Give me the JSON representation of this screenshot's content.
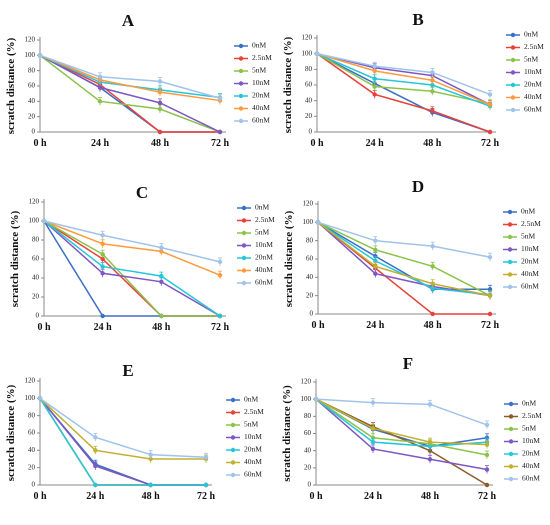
{
  "figure": {
    "title": "",
    "series_colors": [
      "#3a6fc4",
      "#e8413a",
      "#8bc34a",
      "#7e57c2",
      "#26c6da",
      "#ff9a3c",
      "#9fc3ea"
    ]
  },
  "chart_data": [
    {
      "panel": "A",
      "type": "line",
      "title": "A",
      "xlabel": "",
      "ylabel": "scratch distance (%)",
      "ylim": [
        0,
        120
      ],
      "yticks": [
        0,
        20,
        40,
        60,
        80,
        100,
        120
      ],
      "x": [
        "0 h",
        "24 h",
        "48 h",
        "72 h"
      ],
      "series": [
        {
          "name": "0nM",
          "color": "#3a6fc4",
          "values": [
            100,
            58,
            0,
            0
          ]
        },
        {
          "name": "2.5nM",
          "color": "#e8413a",
          "values": [
            100,
            62,
            0,
            0
          ]
        },
        {
          "name": "5nM",
          "color": "#8bc34a",
          "values": [
            100,
            40,
            30,
            0
          ]
        },
        {
          "name": "10nM",
          "color": "#7e57c2",
          "values": [
            100,
            58,
            38,
            0
          ]
        },
        {
          "name": "20nM",
          "color": "#26c6da",
          "values": [
            100,
            65,
            55,
            45
          ]
        },
        {
          "name": "40nM",
          "color": "#ff9a3c",
          "values": [
            100,
            68,
            52,
            41
          ]
        },
        {
          "name": "60nM",
          "color": "#9fc3ea",
          "values": [
            100,
            72,
            66,
            44
          ]
        }
      ]
    },
    {
      "panel": "B",
      "type": "line",
      "title": "B",
      "xlabel": "",
      "ylabel": "scratch distance (%)",
      "ylim": [
        0,
        120
      ],
      "yticks": [
        0,
        20,
        40,
        60,
        80,
        100,
        120
      ],
      "x": [
        "0 h",
        "24 h",
        "48 h",
        "72 h"
      ],
      "series": [
        {
          "name": "0nM",
          "color": "#3a6fc4",
          "values": [
            100,
            62,
            25,
            0
          ]
        },
        {
          "name": "2.5nM",
          "color": "#e8413a",
          "values": [
            100,
            48,
            27,
            0
          ]
        },
        {
          "name": "5nM",
          "color": "#8bc34a",
          "values": [
            100,
            58,
            52,
            36
          ]
        },
        {
          "name": "10nM",
          "color": "#7e57c2",
          "values": [
            100,
            82,
            72,
            35
          ]
        },
        {
          "name": "20nM",
          "color": "#26c6da",
          "values": [
            100,
            68,
            60,
            33
          ]
        },
        {
          "name": "40nM",
          "color": "#ff9a3c",
          "values": [
            100,
            78,
            66,
            35
          ]
        },
        {
          "name": "60nM",
          "color": "#9fc3ea",
          "values": [
            100,
            84,
            76,
            48
          ]
        }
      ]
    },
    {
      "panel": "C",
      "type": "line",
      "title": "C",
      "xlabel": "",
      "ylabel": "scratch distance (%)",
      "ylim": [
        0,
        120
      ],
      "yticks": [
        0,
        20,
        40,
        60,
        80,
        100,
        120
      ],
      "x": [
        "0 h",
        "24 h",
        "48 h",
        "72 h"
      ],
      "series": [
        {
          "name": "0nM",
          "color": "#3a6fc4",
          "values": [
            100,
            0,
            0,
            0
          ]
        },
        {
          "name": "2.5nM",
          "color": "#e8413a",
          "values": [
            100,
            60,
            0,
            0
          ]
        },
        {
          "name": "5nM",
          "color": "#8bc34a",
          "values": [
            100,
            65,
            0,
            0
          ]
        },
        {
          "name": "10nM",
          "color": "#7e57c2",
          "values": [
            100,
            45,
            36,
            0
          ]
        },
        {
          "name": "20nM",
          "color": "#26c6da",
          "values": [
            100,
            52,
            42,
            0
          ]
        },
        {
          "name": "40nM",
          "color": "#ff9a3c",
          "values": [
            100,
            76,
            68,
            43
          ]
        },
        {
          "name": "60nM",
          "color": "#9fc3ea",
          "values": [
            100,
            85,
            72,
            57
          ]
        }
      ]
    },
    {
      "panel": "D",
      "type": "line",
      "title": "D",
      "xlabel": "",
      "ylabel": "scratch distance (%)",
      "ylim": [
        0,
        120
      ],
      "yticks": [
        0,
        20,
        40,
        60,
        80,
        100,
        120
      ],
      "x": [
        "0 h",
        "24 h",
        "48 h",
        "72 h"
      ],
      "series": [
        {
          "name": "0nM",
          "color": "#3a6fc4",
          "values": [
            100,
            63,
            27,
            27
          ]
        },
        {
          "name": "2.5nM",
          "color": "#e8413a",
          "values": [
            100,
            50,
            0,
            0
          ]
        },
        {
          "name": "5nM",
          "color": "#8bc34a",
          "values": [
            100,
            70,
            52,
            20
          ]
        },
        {
          "name": "10nM",
          "color": "#7e57c2",
          "values": [
            100,
            44,
            30,
            20
          ]
        },
        {
          "name": "20nM",
          "color": "#26c6da",
          "values": [
            100,
            58,
            28,
            21
          ]
        },
        {
          "name": "40nM",
          "color": "#c0b030",
          "values": [
            100,
            52,
            33,
            20
          ]
        },
        {
          "name": "60nM",
          "color": "#9fc3ea",
          "values": [
            100,
            80,
            74,
            62
          ]
        }
      ]
    },
    {
      "panel": "E",
      "type": "line",
      "title": "E",
      "xlabel": "",
      "ylabel": "scratch distance (%)",
      "ylim": [
        0,
        120
      ],
      "yticks": [
        0,
        20,
        40,
        60,
        80,
        100,
        120
      ],
      "x": [
        "0 h",
        "24 h",
        "48 h",
        "72 h"
      ],
      "series": [
        {
          "name": "0nM",
          "color": "#3a6fc4",
          "values": [
            100,
            24,
            0,
            0
          ]
        },
        {
          "name": "2.5nM",
          "color": "#e8413a",
          "values": [
            100,
            0,
            0,
            0
          ]
        },
        {
          "name": "5nM",
          "color": "#8bc34a",
          "values": [
            100,
            0,
            0,
            0
          ]
        },
        {
          "name": "10nM",
          "color": "#7e57c2",
          "values": [
            100,
            22,
            0,
            0
          ]
        },
        {
          "name": "20nM",
          "color": "#26c6da",
          "values": [
            100,
            0,
            0,
            0
          ]
        },
        {
          "name": "40nM",
          "color": "#c0b030",
          "values": [
            100,
            40,
            30,
            30
          ]
        },
        {
          "name": "60nM",
          "color": "#9fc3ea",
          "values": [
            100,
            55,
            35,
            32
          ]
        }
      ]
    },
    {
      "panel": "F",
      "type": "line",
      "title": "F",
      "xlabel": "",
      "ylabel": "scratch distance (%)",
      "ylim": [
        0,
        120
      ],
      "yticks": [
        0,
        20,
        40,
        60,
        80,
        100,
        120
      ],
      "x": [
        "0 h",
        "24 h",
        "48 h",
        "72 h"
      ],
      "series": [
        {
          "name": "0nM",
          "color": "#3a6fc4",
          "values": [
            100,
            65,
            45,
            55
          ]
        },
        {
          "name": "2.5nM",
          "color": "#8b5a2b",
          "values": [
            100,
            68,
            40,
            0
          ]
        },
        {
          "name": "5nM",
          "color": "#8bc34a",
          "values": [
            100,
            55,
            48,
            35
          ]
        },
        {
          "name": "10nM",
          "color": "#7e57c2",
          "values": [
            100,
            42,
            30,
            18
          ]
        },
        {
          "name": "20nM",
          "color": "#26c6da",
          "values": [
            100,
            50,
            45,
            50
          ]
        },
        {
          "name": "40nM",
          "color": "#c0b030",
          "values": [
            100,
            66,
            50,
            47
          ]
        },
        {
          "name": "60nM",
          "color": "#9fc3ea",
          "values": [
            100,
            96,
            94,
            70
          ]
        }
      ]
    }
  ]
}
